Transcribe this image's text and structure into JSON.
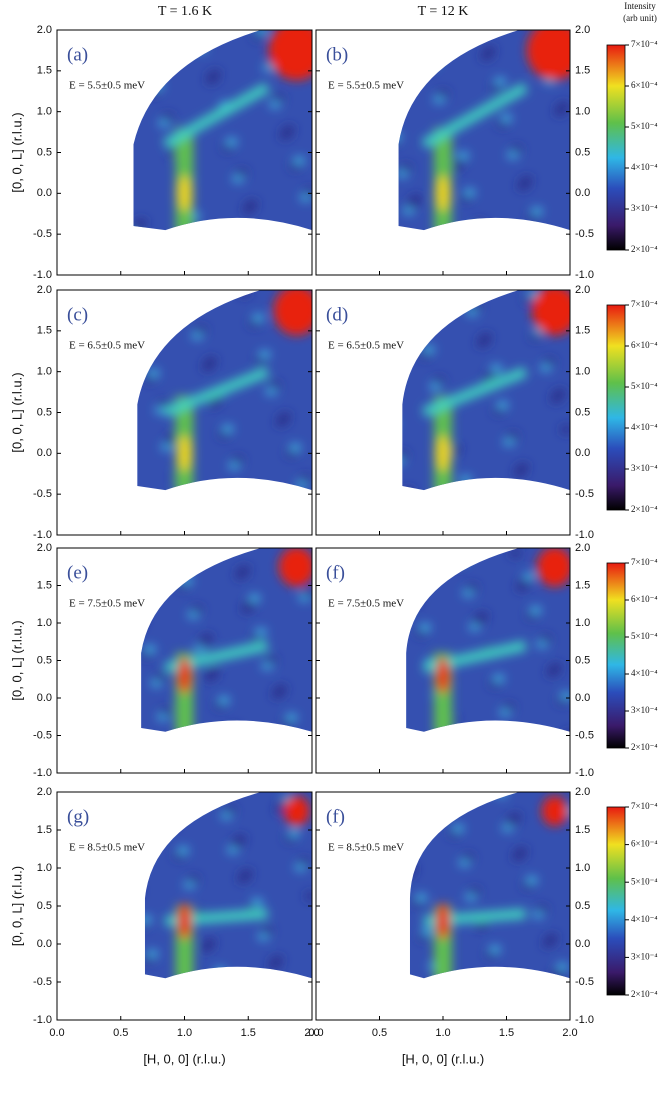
{
  "figure": {
    "column_titles": [
      "T = 1.6 K",
      "T = 12 K"
    ],
    "colorbar_title": "Intensity",
    "colorbar_unit": "(arb unit)",
    "colorbar_ticks": [
      "7×10⁻⁴",
      "6×10⁻⁴",
      "5×10⁻⁴",
      "4×10⁻⁴",
      "3×10⁻⁴",
      "2×10⁻⁴"
    ],
    "y_axis_label": "[0, 0, L] (r.l.u.)",
    "x_axis_label": "[H, 0, 0] (r.l.u.)",
    "y_ticks": [
      "2.0",
      "1.5",
      "1.0",
      "0.5",
      "0.0",
      "-0.5",
      "-1.0"
    ],
    "x_ticks": [
      "0.0",
      "0.5",
      "1.0",
      "1.5",
      "2.0"
    ],
    "panels": [
      {
        "label": "(a)",
        "energy": "E = 5.5±0.5 meV"
      },
      {
        "label": "(b)",
        "energy": "E = 5.5±0.5 meV"
      },
      {
        "label": "(c)",
        "energy": "E = 6.5±0.5 meV"
      },
      {
        "label": "(d)",
        "energy": "E = 6.5±0.5 meV"
      },
      {
        "label": "(e)",
        "energy": "E = 7.5±0.5 meV"
      },
      {
        "label": "(f)",
        "energy": "E = 7.5±0.5 meV"
      },
      {
        "label": "(g)",
        "energy": "E = 8.5±0.5 meV"
      },
      {
        "label": "(f)",
        "energy": "E = 8.5±0.5 meV"
      }
    ]
  }
}
